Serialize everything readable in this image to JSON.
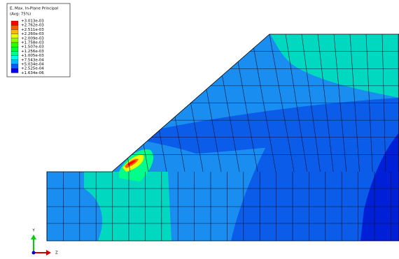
{
  "legend": {
    "title": "E, Max. In-Plane Principal",
    "subtitle": "(Avg: 75%)",
    "labels": [
      "+3.013e-03",
      "+2.762e-03",
      "+2.511e-03",
      "+2.260e-03",
      "+2.009e-03",
      "+1.758e-03",
      "+1.507e-03",
      "+1.256e-03",
      "+1.005e-03",
      "+7.543e-04",
      "+5.034e-04",
      "+2.525e-04",
      "+1.634e-06"
    ]
  },
  "triad": {
    "y_label": "Y",
    "z_label": "Z"
  }
}
